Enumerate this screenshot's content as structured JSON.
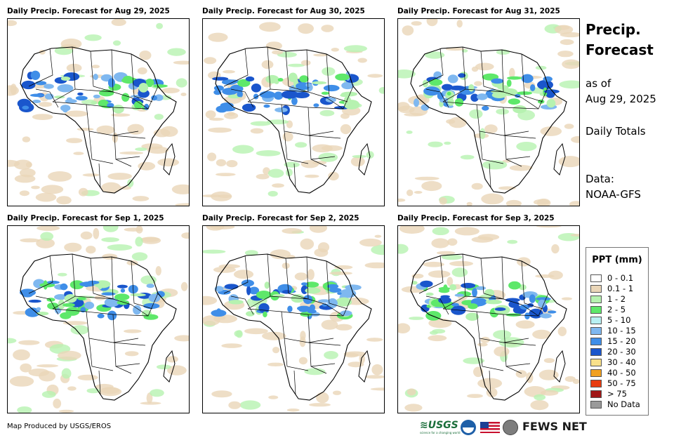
{
  "panels": [
    {
      "title": "Daily Precip. Forecast for Aug 29, 2025"
    },
    {
      "title": "Daily Precip. Forecast for Aug 30, 2025"
    },
    {
      "title": "Daily Precip. Forecast for Aug 31, 2025"
    },
    {
      "title": "Daily Precip. Forecast for Sep 1, 2025"
    },
    {
      "title": "Daily Precip. Forecast for Sep 2, 2025"
    },
    {
      "title": "Daily Precip. Forecast for Sep 3, 2025"
    }
  ],
  "side": {
    "title_line1": "Precip.",
    "title_line2": "Forecast",
    "asof_line1": "as of",
    "asof_line2": "Aug 29, 2025",
    "totals": "Daily Totals",
    "data_line1": "Data:",
    "data_line2": "NOAA-GFS"
  },
  "legend": {
    "title": "PPT (mm)",
    "items": [
      {
        "label": "0 - 0.1",
        "color": "#ffffff"
      },
      {
        "label": "0.1 - 1",
        "color": "#ead6b8"
      },
      {
        "label": "1 - 2",
        "color": "#b6f2b0"
      },
      {
        "label": "2 - 5",
        "color": "#5ee86a"
      },
      {
        "label": "5 - 10",
        "color": "#b8f0f2"
      },
      {
        "label": "10 - 15",
        "color": "#7fb8f0"
      },
      {
        "label": "15 - 20",
        "color": "#3f8ee8"
      },
      {
        "label": "20 - 30",
        "color": "#1a56cc"
      },
      {
        "label": "30 - 40",
        "color": "#f8e08a"
      },
      {
        "label": "40 - 50",
        "color": "#f0a020"
      },
      {
        "label": "50 - 75",
        "color": "#e83c10"
      },
      {
        "label": "> 75",
        "color": "#a01818"
      },
      {
        "label": "No Data",
        "color": "#9a9a9a"
      }
    ]
  },
  "footer": {
    "credit": "Map Produced by USGS/EROS"
  },
  "logos": {
    "usgs": "≋USGS",
    "usgs_tagline": "science for a changing world",
    "fews": "FEWS NET"
  }
}
